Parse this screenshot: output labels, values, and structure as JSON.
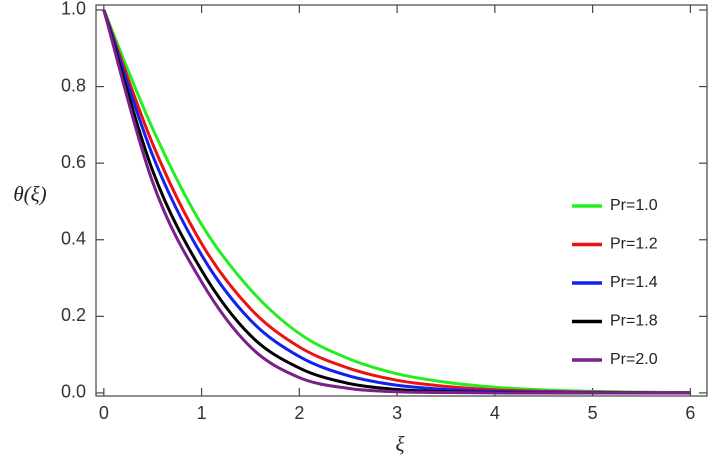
{
  "chart_data": {
    "type": "line",
    "xlabel": "ξ",
    "ylabel": "θ(ξ)",
    "x": [
      0,
      0.5,
      1,
      1.5,
      2,
      2.5,
      3,
      3.5,
      4,
      4.5,
      5,
      5.5,
      6
    ],
    "series": [
      {
        "name": "Pr=1.0",
        "color": "#22ee22",
        "values": [
          1,
          0.69,
          0.44,
          0.27,
          0.155,
          0.09,
          0.05,
          0.028,
          0.015,
          0.008,
          0.004,
          0.002,
          0.001
        ]
      },
      {
        "name": "Pr=1.2",
        "color": "#ee1111",
        "values": [
          1,
          0.65,
          0.39,
          0.22,
          0.12,
          0.065,
          0.033,
          0.017,
          0.008,
          0.004,
          0.002,
          0.001,
          0
        ]
      },
      {
        "name": "Pr=1.4",
        "color": "#1122ee",
        "values": [
          1,
          0.62,
          0.36,
          0.19,
          0.095,
          0.045,
          0.02,
          0.009,
          0.004,
          0.002,
          0.001,
          0,
          0
        ]
      },
      {
        "name": "Pr=1.8",
        "color": "#000000",
        "values": [
          1,
          0.58,
          0.32,
          0.15,
          0.065,
          0.025,
          0.009,
          0.003,
          0.001,
          0,
          0,
          0,
          0
        ]
      },
      {
        "name": "Pr=2.0",
        "color": "#7a1f8c",
        "values": [
          1,
          0.55,
          0.29,
          0.12,
          0.04,
          0.012,
          0.003,
          0.001,
          0,
          0,
          0,
          0,
          0
        ]
      }
    ],
    "xlim": [
      -0.08,
      6.17
    ],
    "ylim": [
      -0.008,
      1.013
    ],
    "xticks": [
      0,
      1,
      2,
      3,
      4,
      5,
      6
    ],
    "yticks": [
      {
        "value": 0,
        "label": "0.0"
      },
      0.2,
      0.4,
      0.6,
      0.8,
      {
        "value": 1,
        "label": "1.0"
      }
    ],
    "legend": "right"
  }
}
